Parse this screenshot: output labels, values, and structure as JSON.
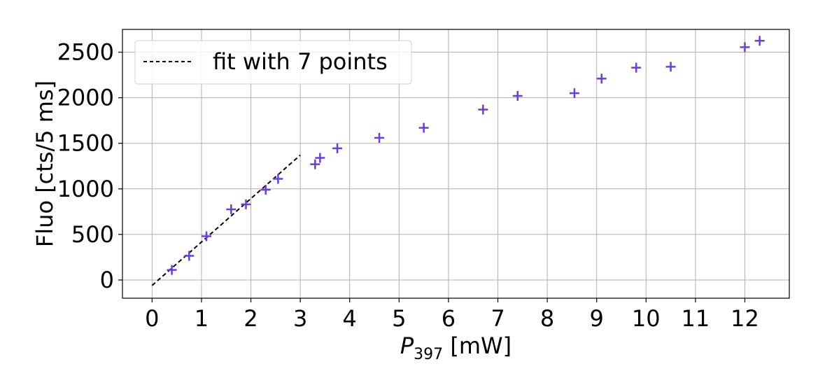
{
  "chart_data": {
    "type": "scatter",
    "xlabel": {
      "main": "P",
      "sub": "397",
      "unit": " [mW]"
    },
    "ylabel": "Fluo [cts/5 ms]",
    "xlim": [
      -0.6,
      12.9
    ],
    "ylim": [
      -200,
      2750
    ],
    "xticks": [
      "0",
      "1",
      "2",
      "3",
      "4",
      "5",
      "6",
      "7",
      "8",
      "9",
      "10",
      "11",
      "12"
    ],
    "yticks": [
      "0",
      "500",
      "1000",
      "1500",
      "2000",
      "2500"
    ],
    "grid": true,
    "legend": {
      "placement": "top-left",
      "entries": [
        "fit with 7 points"
      ]
    },
    "colors": {
      "points": "#6a3fd9",
      "fit": "#000000",
      "grid": "#b0b0b0"
    },
    "series": [
      {
        "kind": "points",
        "x": [
          0.4,
          0.75,
          1.1,
          1.6,
          1.9,
          2.3,
          2.55,
          3.3,
          3.4,
          3.75,
          4.6,
          5.5,
          6.7,
          7.4,
          8.55,
          9.1,
          9.8,
          10.5,
          12.0,
          12.3
        ],
        "y": [
          110,
          265,
          480,
          775,
          830,
          990,
          1110,
          1270,
          1340,
          1445,
          1560,
          1670,
          1870,
          2020,
          2050,
          2210,
          2330,
          2340,
          2555,
          2625
        ]
      },
      {
        "kind": "fit",
        "name": "fit with 7 points",
        "x": [
          0,
          3.0
        ],
        "y": [
          -60,
          1370
        ]
      }
    ]
  }
}
